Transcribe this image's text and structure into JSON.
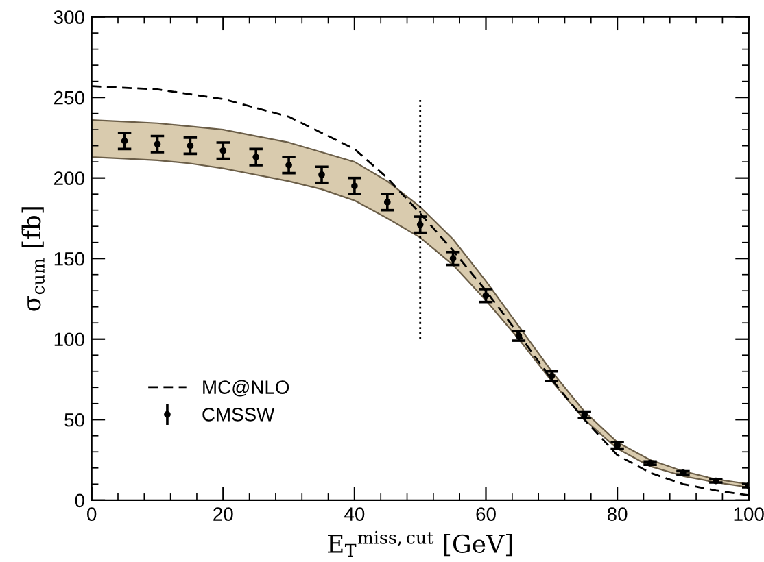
{
  "chart_data": {
    "type": "line",
    "xlabel": "E$_{T}$$^{miss,cut}$ [GeV]",
    "ylabel": "σ$_{cum}$ [fb]",
    "xlim": [
      0,
      100
    ],
    "xticks": [
      0,
      20,
      40,
      60,
      80,
      100
    ],
    "ylim": [
      0,
      300
    ],
    "yticks": [
      0,
      50,
      100,
      150,
      200,
      250,
      300
    ],
    "grid": false,
    "legend": "bottom left",
    "series": [
      {
        "name": "MC@NLO",
        "line_style": "dashed",
        "marker": "none",
        "color": "#000000",
        "x": [
          0,
          10,
          20,
          30,
          40,
          45,
          50,
          55,
          60,
          65,
          70,
          75,
          80,
          85,
          90,
          95,
          100
        ],
        "values": [
          257,
          255,
          249,
          238,
          218,
          200,
          178,
          155,
          130,
          103,
          75,
          50,
          28,
          17,
          10,
          6,
          3
        ]
      },
      {
        "name": "CMSSW",
        "type": "scatter",
        "marker": "circle",
        "color": "#000000",
        "x": [
          0,
          5,
          10,
          15,
          20,
          25,
          30,
          35,
          40,
          45,
          50,
          55,
          60,
          65,
          70,
          75,
          80,
          85,
          90,
          95,
          100
        ],
        "values": [
          null,
          223,
          221,
          220,
          217,
          213,
          208,
          202,
          195,
          185,
          171,
          150,
          127,
          102,
          77,
          53,
          34,
          23,
          17,
          12,
          9
        ],
        "errors": [
          null,
          5,
          5,
          5,
          5,
          5,
          5,
          5,
          5,
          5,
          5,
          4,
          4,
          3,
          3,
          2,
          2,
          1,
          1,
          1,
          1
        ],
        "lower": [
          213,
          212,
          211,
          209,
          206,
          202,
          198,
          193,
          186,
          175,
          163,
          146,
          124,
          100,
          74,
          50,
          32,
          21,
          15,
          11,
          8
        ],
        "upper": [
          236,
          235,
          234,
          232,
          230,
          226,
          222,
          216,
          210,
          198,
          182,
          162,
          136,
          108,
          80,
          55,
          36,
          25,
          18,
          13,
          10
        ]
      }
    ],
    "ref_lines": [
      {
        "axis": "x",
        "value": 50,
        "line_style": "dotted",
        "color": "#000000"
      }
    ]
  }
}
